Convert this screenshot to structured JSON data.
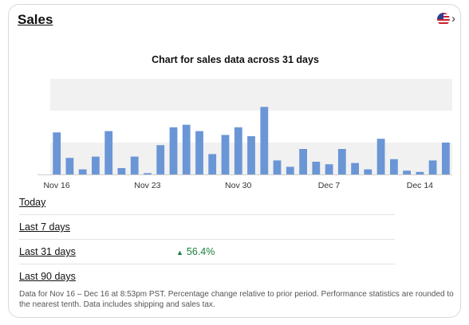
{
  "card": {
    "title": "Sales"
  },
  "region": {
    "icon": "us-flag-icon",
    "chevron": "›"
  },
  "chart_data": {
    "type": "bar",
    "title": "Chart for sales data across 31 days",
    "xlabel": "",
    "ylabel": "",
    "x_ticks": [
      "Nov 16",
      "Nov 23",
      "Nov 30",
      "Dec 7",
      "Dec 14"
    ],
    "categories": [
      "Nov 16",
      "Nov 17",
      "Nov 18",
      "Nov 19",
      "Nov 20",
      "Nov 21",
      "Nov 22",
      "Nov 23",
      "Nov 24",
      "Nov 25",
      "Nov 26",
      "Nov 27",
      "Nov 28",
      "Nov 29",
      "Nov 30",
      "Dec 1",
      "Dec 2",
      "Dec 3",
      "Dec 4",
      "Dec 5",
      "Dec 6",
      "Dec 7",
      "Dec 8",
      "Dec 9",
      "Dec 10",
      "Dec 11",
      "Dec 12",
      "Dec 13",
      "Dec 14",
      "Dec 15",
      "Dec 16"
    ],
    "values": [
      33,
      13,
      4,
      14,
      34,
      5,
      14,
      1,
      23,
      37,
      39,
      34,
      16,
      31,
      37,
      30,
      53,
      11,
      6,
      20,
      10,
      8,
      20,
      9,
      4,
      28,
      12,
      3,
      2,
      11,
      25
    ],
    "ylim": [
      0,
      75
    ],
    "bar_color": "#6b96d6",
    "band_color": "#f1f1f1",
    "grid": false,
    "legend": "none"
  },
  "periods": [
    {
      "label": "Today",
      "change": ""
    },
    {
      "label": "Last 7 days",
      "change": ""
    },
    {
      "label": "Last 31 days",
      "change": "56.4%",
      "direction": "up"
    },
    {
      "label": "Last 90 days",
      "change": ""
    }
  ],
  "footnote": "Data for Nov 16 – Dec 16 at 8:53pm PST. Percentage change relative to prior period. Performance statistics are rounded to the nearest tenth. Data includes shipping and sales tax.",
  "colors": {
    "accent_up": "#1a7f3c"
  }
}
